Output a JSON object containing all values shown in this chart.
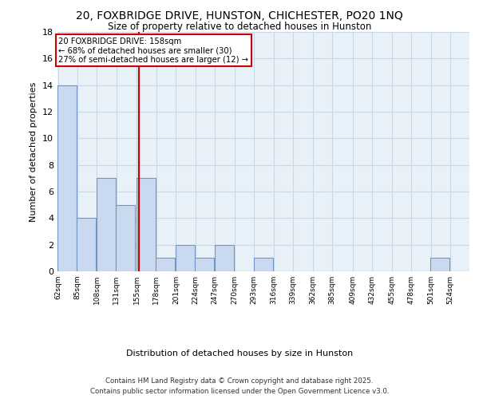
{
  "title1": "20, FOXBRIDGE DRIVE, HUNSTON, CHICHESTER, PO20 1NQ",
  "title2": "Size of property relative to detached houses in Hunston",
  "xlabel": "Distribution of detached houses by size in Hunston",
  "ylabel": "Number of detached properties",
  "bins": [
    62,
    85,
    108,
    131,
    155,
    178,
    201,
    224,
    247,
    270,
    293,
    316,
    339,
    362,
    385,
    409,
    432,
    455,
    478,
    501,
    524
  ],
  "counts": [
    14,
    4,
    7,
    5,
    7,
    1,
    2,
    1,
    2,
    0,
    1,
    0,
    0,
    0,
    0,
    0,
    0,
    0,
    0,
    1,
    0
  ],
  "subject_value": 158,
  "bar_color": "#c9d9f0",
  "bar_edge_color": "#7096c8",
  "vline_color": "#cc0000",
  "annotation_text": "20 FOXBRIDGE DRIVE: 158sqm\n← 68% of detached houses are smaller (30)\n27% of semi-detached houses are larger (12) →",
  "annotation_box_color": "#ffffff",
  "annotation_box_edge": "#cc0000",
  "ylim": [
    0,
    18
  ],
  "yticks": [
    0,
    2,
    4,
    6,
    8,
    10,
    12,
    14,
    16,
    18
  ],
  "grid_color": "#c8d8e8",
  "background_color": "#e8f0f8",
  "footer1": "Contains HM Land Registry data © Crown copyright and database right 2025.",
  "footer2": "Contains public sector information licensed under the Open Government Licence v3.0."
}
